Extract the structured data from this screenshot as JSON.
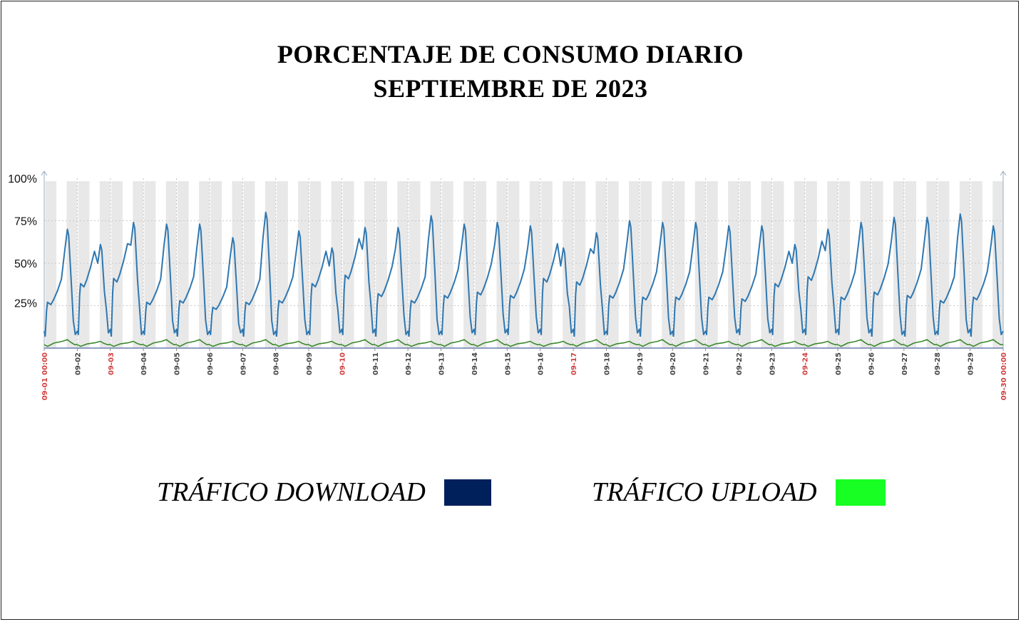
{
  "title": {
    "line1": "PORCENTAJE DE CONSUMO DIARIO",
    "line2": "SEPTIEMBRE DE 2023"
  },
  "legend": {
    "download_label": "TRÁFICO DOWNLOAD",
    "upload_label": "TRÁFICO UPLOAD",
    "download_color": "#00205b",
    "upload_color": "#17ff23"
  },
  "chart_data": {
    "type": "line",
    "x_ticks": [
      "09-01 00:00",
      "09-02",
      "09-03",
      "09-04",
      "09-05",
      "09-06",
      "09-07",
      "09-08",
      "09-09",
      "09-10",
      "09-11",
      "09-12",
      "09-13",
      "09-14",
      "09-15",
      "09-16",
      "09-17",
      "09-18",
      "09-19",
      "09-20",
      "09-21",
      "09-22",
      "09-23",
      "09-24",
      "09-25",
      "09-26",
      "09-27",
      "09-28",
      "09-29",
      "09-30 00:00"
    ],
    "weekend_ticks": [
      "09-01 00:00",
      "09-03",
      "09-10",
      "09-17",
      "09-24",
      "09-30 00:00"
    ],
    "y_ticks": [
      "100%",
      "75%",
      "50%",
      "25%"
    ],
    "ylim": [
      0,
      100
    ],
    "grid": true,
    "series": [
      {
        "color": "#2f77b0",
        "daily_peak": [
          70,
          61,
          74,
          73,
          73,
          65,
          80,
          69,
          59,
          71,
          71,
          78,
          73,
          74,
          72,
          59,
          68,
          75,
          74,
          74,
          72,
          72,
          61,
          70,
          74,
          77,
          77,
          79,
          72
        ],
        "daily_low": [
          6,
          7,
          6,
          7,
          6,
          7,
          6,
          6,
          7,
          7,
          6,
          6,
          7,
          7,
          7,
          7,
          6,
          7,
          6,
          6,
          7,
          7,
          7,
          7,
          7,
          6,
          6,
          7,
          6
        ],
        "daily_plateau": [
          27,
          38,
          41,
          27,
          28,
          24,
          27,
          28,
          38,
          43,
          32,
          28,
          31,
          33,
          31,
          41,
          39,
          31,
          30,
          30,
          30,
          29,
          38,
          42,
          30,
          33,
          31,
          28,
          30
        ]
      },
      {
        "color": "#3a8a2a",
        "daily_peak": [
          5,
          4,
          4,
          5,
          5,
          4,
          5,
          4,
          4,
          5,
          5,
          4,
          5,
          5,
          4,
          4,
          5,
          4,
          5,
          5,
          4,
          5,
          4,
          4,
          5,
          5,
          5,
          5,
          5
        ],
        "daily_low": [
          1,
          1,
          1,
          1,
          1,
          1,
          1,
          1,
          1,
          1,
          1,
          1,
          1,
          1,
          1,
          1,
          1,
          1,
          1,
          1,
          1,
          1,
          1,
          1,
          1,
          1,
          1,
          1,
          1
        ]
      }
    ]
  }
}
